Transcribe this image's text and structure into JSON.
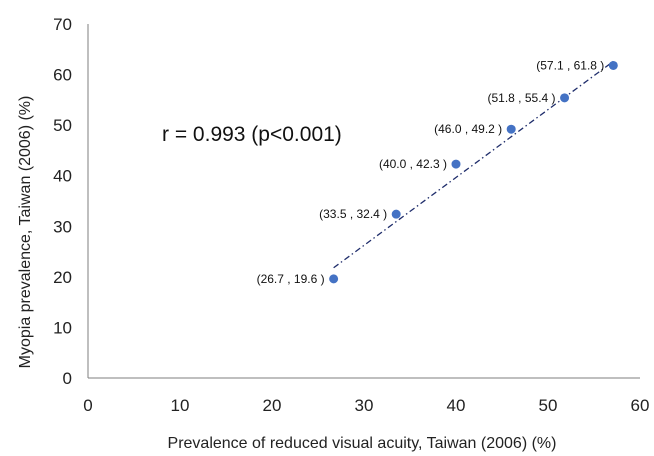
{
  "chart_data": {
    "type": "scatter",
    "xlabel": "Prevalence of reduced visual acuity, Taiwan (2006) (%)",
    "ylabel": "Myopia prevalence, Taiwan (2006) (%)",
    "xlim": [
      0,
      60
    ],
    "ylim": [
      0,
      70
    ],
    "x_ticks": [
      0,
      10,
      20,
      30,
      40,
      50,
      60
    ],
    "y_ticks": [
      0,
      10,
      20,
      30,
      40,
      50,
      60,
      70
    ],
    "grid": false,
    "legend": "none",
    "points": [
      {
        "x": 26.7,
        "y": 19.6,
        "label": "(26.7 , 19.6 )"
      },
      {
        "x": 33.5,
        "y": 32.4,
        "label": "(33.5 , 32.4 )"
      },
      {
        "x": 40.0,
        "y": 42.3,
        "label": "(40.0 , 42.3 )"
      },
      {
        "x": 46.0,
        "y": 49.2,
        "label": "(46.0 , 49.2 )"
      },
      {
        "x": 51.8,
        "y": 55.4,
        "label": "(51.8 , 55.4 )"
      },
      {
        "x": 57.1,
        "y": 61.8,
        "label": "(57.1 , 61.8 )"
      }
    ],
    "trendline": {
      "style": "dash-dot",
      "x_start": 26.7,
      "y_start": 21.8,
      "x_end": 57.1,
      "y_end": 62.6
    },
    "annotation": "r = 0.993 (p<0.001)",
    "colors": {
      "points": "#4472c4",
      "trendline": "#1f2d6b",
      "axes": "#7f7f7f"
    }
  }
}
